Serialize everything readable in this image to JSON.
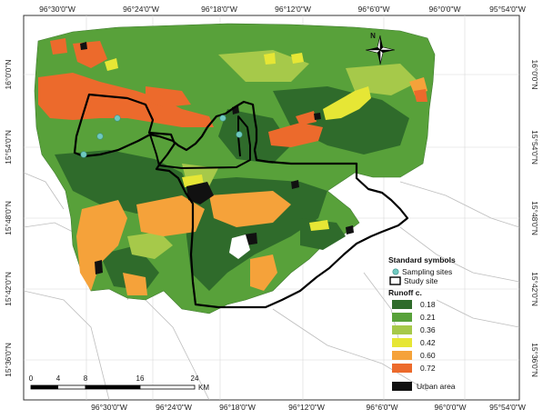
{
  "axes": {
    "top": [
      "96°30'0\"W",
      "96°24'0\"W",
      "96°18'0\"W",
      "96°12'0\"W",
      "96°6'0\"W",
      "96°0'0\"W",
      "95°54'0\"W"
    ],
    "bottom": [
      "96°30'0\"W",
      "96°24'0\"W",
      "96°18'0\"W",
      "96°12'0\"W",
      "96°6'0\"W",
      "96°0'0\"W",
      "95°54'0\"W"
    ],
    "left": [
      "16°0'0\"N",
      "15°54'0\"N",
      "15°48'0\"N",
      "15°42'0\"N",
      "15°36'0\"N"
    ],
    "right": [
      "16°0'0\"N",
      "15°54'0\"N",
      "15°48'0\"N",
      "15°42'0\"N",
      "15°36'0\"N"
    ]
  },
  "north_arrow": {
    "label": "N"
  },
  "scale_bar": {
    "ticks": [
      "0",
      "4",
      "8",
      "16",
      "24"
    ],
    "unit": "KM"
  },
  "legend": {
    "standard_title": "Standard symbols",
    "sampling_label": "Sampling sites",
    "study_label": "Study site",
    "runoff_title": "Runoff c.",
    "classes": [
      {
        "label": "0.18",
        "color": "#2f6b2b"
      },
      {
        "label": "0.21",
        "color": "#58a13a"
      },
      {
        "label": "0.36",
        "color": "#a6c94a"
      },
      {
        "label": "0.42",
        "color": "#e6e635"
      },
      {
        "label": "0.60",
        "color": "#f5a23a"
      },
      {
        "label": "0.72",
        "color": "#ec6a2c"
      }
    ],
    "urban_label": "Urban area",
    "urban_color": "#111111",
    "sampling_color": "#6fc9c0"
  }
}
